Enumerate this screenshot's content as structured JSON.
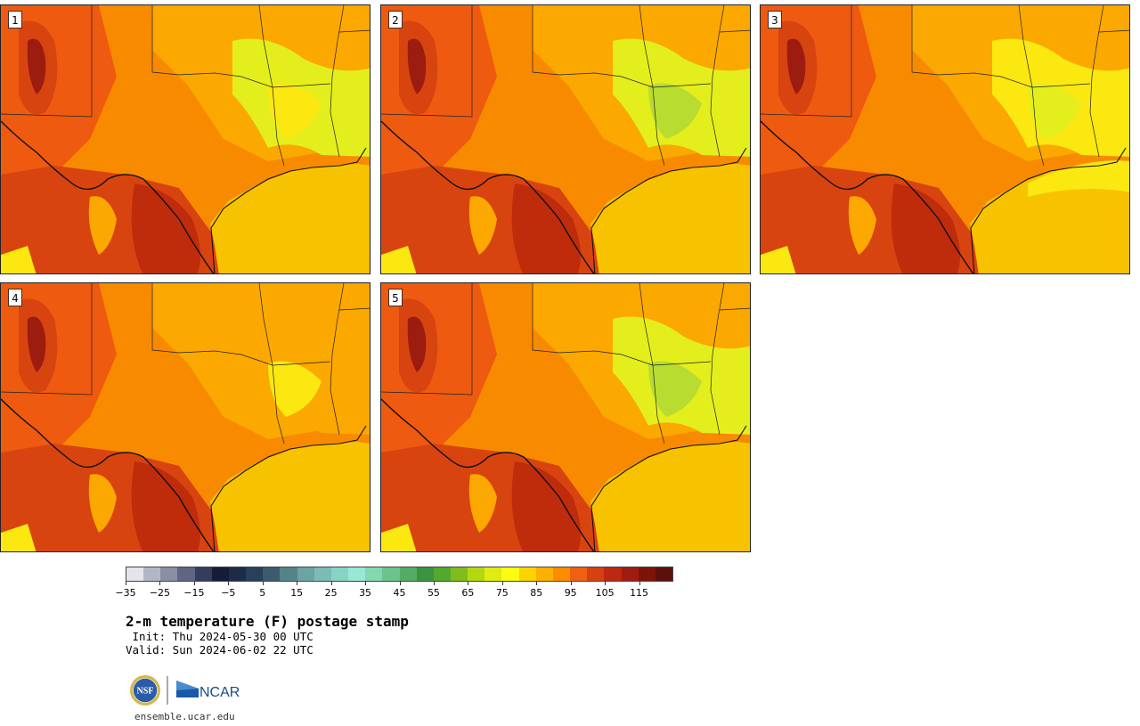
{
  "panels": [
    {
      "label": "1"
    },
    {
      "label": "2"
    },
    {
      "label": "3"
    },
    {
      "label": "4"
    },
    {
      "label": "5"
    }
  ],
  "colorbar": {
    "colors": [
      "#e4e4ea",
      "#b4b6c6",
      "#8c8fa4",
      "#5f6582",
      "#353d5c",
      "#141c38",
      "#1c2c48",
      "#28405a",
      "#3a5c6c",
      "#548488",
      "#6ca4a4",
      "#7cbcb4",
      "#88d4c4",
      "#98e8d4",
      "#84d8b0",
      "#6cc48c",
      "#54ac64",
      "#3c9440",
      "#54a82c",
      "#80bc1c",
      "#b4d810",
      "#e0ec10",
      "#fcfc10",
      "#fcd400",
      "#fcb000",
      "#fc8c00",
      "#f06010",
      "#d84010",
      "#bc2810",
      "#a01c10",
      "#7c1408",
      "#5c100c"
    ],
    "ticks": [
      "−35",
      "−25",
      "−15",
      "−5",
      "5",
      "15",
      "25",
      "35",
      "45",
      "55",
      "65",
      "75",
      "85",
      "95",
      "105",
      "115"
    ]
  },
  "title": "2-m temperature (F) postage stamp",
  "init": " Init: Thu 2024-05-30 00 UTC",
  "valid": "Valid: Sun 2024-06-02 22 UTC",
  "logos": {
    "nsf": "NSF",
    "ncar": "NCAR"
  },
  "url": "ensemble.ucar.edu"
}
